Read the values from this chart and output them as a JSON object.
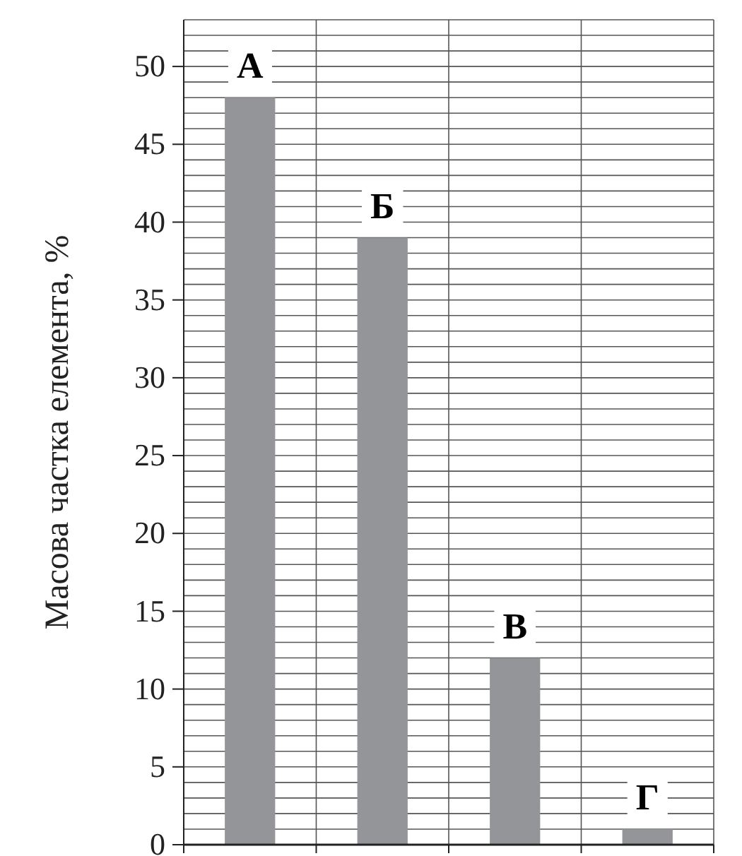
{
  "chart_data": {
    "type": "bar",
    "categories": [
      "А",
      "Б",
      "В",
      "Г"
    ],
    "values": [
      48,
      39,
      12,
      1
    ],
    "color": "#939598",
    "ylabel": "Масова частка елемента, %",
    "ylim": [
      0,
      53
    ],
    "yticks": [
      0,
      {
        "value": 1,
        "label": null
      },
      {
        "value": 2,
        "label": null
      },
      {
        "value": 3,
        "label": null
      },
      {
        "value": 4,
        "label": null
      },
      5,
      {
        "value": 6,
        "label": null
      },
      {
        "value": 7,
        "label": null
      },
      {
        "value": 8,
        "label": null
      },
      {
        "value": 9,
        "label": null
      },
      10,
      {
        "value": 11,
        "label": null
      },
      {
        "value": 12,
        "label": null
      },
      {
        "value": 13,
        "label": null
      },
      {
        "value": 14,
        "label": null
      },
      15,
      {
        "value": 16,
        "label": null
      },
      {
        "value": 17,
        "label": null
      },
      {
        "value": 18,
        "label": null
      },
      {
        "value": 19,
        "label": null
      },
      20,
      {
        "value": 21,
        "label": null
      },
      {
        "value": 22,
        "label": null
      },
      {
        "value": 23,
        "label": null
      },
      {
        "value": 24,
        "label": null
      },
      25,
      {
        "value": 26,
        "label": null
      },
      {
        "value": 27,
        "label": null
      },
      {
        "value": 28,
        "label": null
      },
      {
        "value": 29,
        "label": null
      },
      30,
      {
        "value": 31,
        "label": null
      },
      {
        "value": 32,
        "label": null
      },
      {
        "value": 33,
        "label": null
      },
      {
        "value": 34,
        "label": null
      },
      35,
      {
        "value": 36,
        "label": null
      },
      {
        "value": 37,
        "label": null
      },
      {
        "value": 38,
        "label": null
      },
      {
        "value": 39,
        "label": null
      },
      40,
      {
        "value": 41,
        "label": null
      },
      {
        "value": 42,
        "label": null
      },
      {
        "value": 43,
        "label": null
      },
      {
        "value": 44,
        "label": null
      },
      45,
      {
        "value": 46,
        "label": null
      },
      {
        "value": 47,
        "label": null
      },
      {
        "value": 48,
        "label": null
      },
      {
        "value": 49,
        "label": null
      },
      50,
      {
        "value": 51,
        "label": null
      },
      {
        "value": 52,
        "label": null
      },
      {
        "value": 53,
        "label": null
      }
    ],
    "grid": true,
    "tick_labels": "y"
  }
}
